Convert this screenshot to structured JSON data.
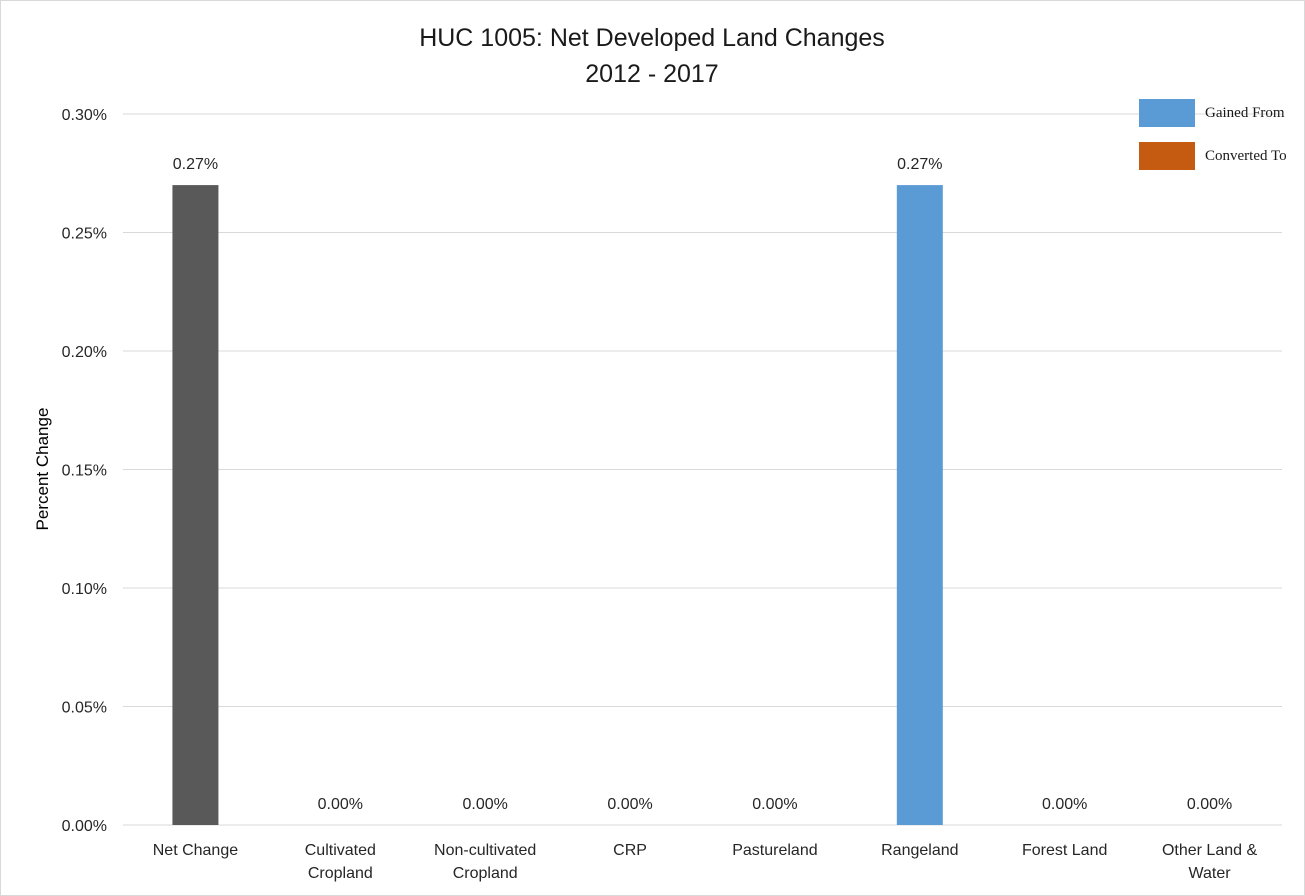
{
  "chart_data": {
    "type": "bar",
    "title": "HUC 1005: Net Developed Land Changes",
    "subtitle": "2012 - 2017",
    "ylabel": "Percent Change",
    "xlabel": "",
    "ylim": [
      0,
      0.3
    ],
    "yticks": [
      0,
      0.05,
      0.1,
      0.15,
      0.2,
      0.25,
      0.3
    ],
    "ytick_labels": [
      "0.00%",
      "0.05%",
      "0.10%",
      "0.15%",
      "0.20%",
      "0.25%",
      "0.30%"
    ],
    "categories": [
      [
        "Net Change"
      ],
      [
        "Cultivated",
        "Cropland"
      ],
      [
        "Non-cultivated",
        "Cropland"
      ],
      [
        "CRP"
      ],
      [
        "Pastureland"
      ],
      [
        "Rangeland"
      ],
      [
        "Forest Land"
      ],
      [
        "Other Land &",
        "Water"
      ]
    ],
    "values": [
      0.27,
      0,
      0,
      0,
      0,
      0.27,
      0,
      0
    ],
    "value_labels": [
      "0.27%",
      "0.00%",
      "0.00%",
      "0.00%",
      "0.00%",
      "0.27%",
      "0.00%",
      "0.00%"
    ],
    "bar_colors": [
      "#595959",
      "#5b9bd5",
      "#5b9bd5",
      "#5b9bd5",
      "#5b9bd5",
      "#5b9bd5",
      "#5b9bd5",
      "#5b9bd5"
    ],
    "legend": [
      {
        "label": "Gained From",
        "color": "#5b9bd5"
      },
      {
        "label": "Converted To",
        "color": "#c55a11"
      }
    ],
    "legend_position": "top-right",
    "grid": true,
    "gridline_color": "#d9d9d9"
  }
}
